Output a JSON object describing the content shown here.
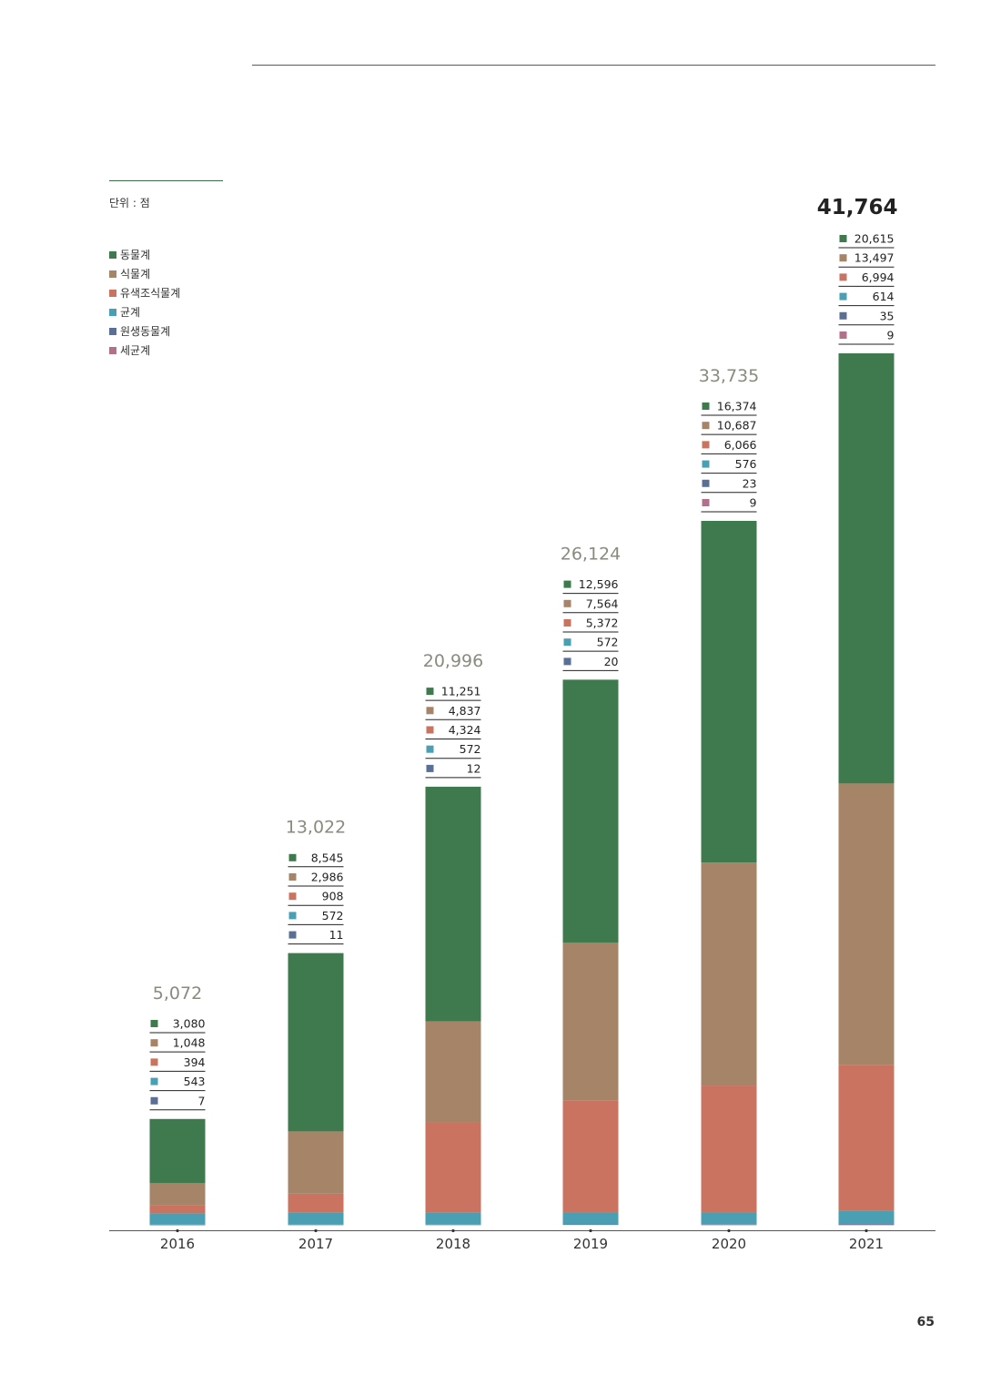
{
  "unit_label": "단위 : 점",
  "page_number": "65",
  "colors": {
    "동물계": "#3f7a4f",
    "식물계": "#a58467",
    "유색조식물계": "#c97360",
    "균계": "#4a9fb3",
    "원생동물계": "#5b6f96",
    "세균계": "#b3708a"
  },
  "legend": [
    {
      "label": "동물계",
      "color": "#3f7a4f"
    },
    {
      "label": "식물계",
      "color": "#a58467"
    },
    {
      "label": "유색조식물계",
      "color": "#c97360"
    },
    {
      "label": "균계",
      "color": "#4a9fb3"
    },
    {
      "label": "원생동물계",
      "color": "#5b6f96"
    },
    {
      "label": "세균계",
      "color": "#b3708a"
    }
  ],
  "chart_data": {
    "type": "bar",
    "stacked": true,
    "categories": [
      "2016",
      "2017",
      "2018",
      "2019",
      "2020",
      "2021"
    ],
    "totals": [
      "5,072",
      "13,022",
      "20,996",
      "26,124",
      "33,735",
      "41,764"
    ],
    "emphasized_total_index": 5,
    "series": [
      {
        "name": "동물계",
        "values": [
          3080,
          8545,
          11251,
          12596,
          16374,
          20615
        ],
        "labels": [
          "3,080",
          "8,545",
          "11,251",
          "12,596",
          "16,374",
          "20,615"
        ]
      },
      {
        "name": "식물계",
        "values": [
          1048,
          2986,
          4837,
          7564,
          10687,
          13497
        ],
        "labels": [
          "1,048",
          "2,986",
          "4,837",
          "7,564",
          "10,687",
          "13,497"
        ]
      },
      {
        "name": "유색조식물계",
        "values": [
          394,
          908,
          4324,
          5372,
          6066,
          6994
        ],
        "labels": [
          "394",
          "908",
          "4,324",
          "5,372",
          "6,066",
          "6,994"
        ]
      },
      {
        "name": "균계",
        "values": [
          543,
          572,
          572,
          572,
          576,
          614
        ],
        "labels": [
          "543",
          "572",
          "572",
          "572",
          "576",
          "614"
        ]
      },
      {
        "name": "원생동물계",
        "values": [
          7,
          11,
          12,
          20,
          23,
          35
        ],
        "labels": [
          "7",
          "11",
          "12",
          "20",
          "23",
          "35"
        ]
      },
      {
        "name": "세균계",
        "values": [
          null,
          null,
          null,
          null,
          9,
          9
        ],
        "labels": [
          null,
          null,
          null,
          null,
          "9",
          "9"
        ]
      }
    ],
    "stack_order": [
      "세균계",
      "원생동물계",
      "균계",
      "유색조식물계",
      "식물계",
      "동물계"
    ],
    "legend_position": "top-left",
    "grid": false
  }
}
